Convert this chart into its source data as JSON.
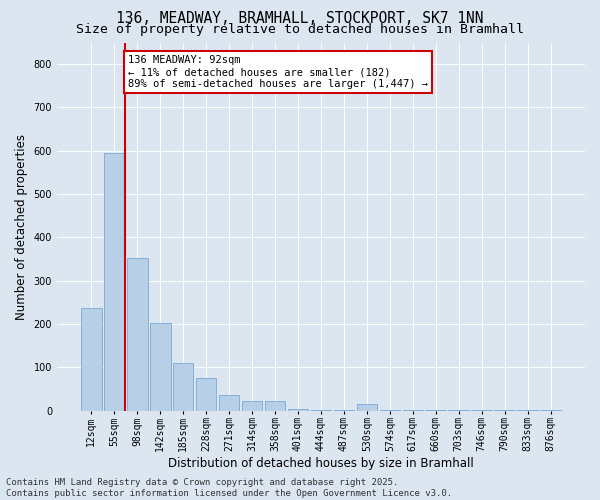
{
  "title1": "136, MEADWAY, BRAMHALL, STOCKPORT, SK7 1NN",
  "title2": "Size of property relative to detached houses in Bramhall",
  "xlabel": "Distribution of detached houses by size in Bramhall",
  "ylabel": "Number of detached properties",
  "bar_labels": [
    "12sqm",
    "55sqm",
    "98sqm",
    "142sqm",
    "185sqm",
    "228sqm",
    "271sqm",
    "314sqm",
    "358sqm",
    "401sqm",
    "444sqm",
    "487sqm",
    "530sqm",
    "574sqm",
    "617sqm",
    "660sqm",
    "703sqm",
    "746sqm",
    "790sqm",
    "833sqm",
    "876sqm"
  ],
  "bar_values": [
    238,
    595,
    352,
    202,
    110,
    75,
    35,
    22,
    22,
    3,
    2,
    2,
    15,
    1,
    1,
    1,
    1,
    1,
    1,
    1,
    1
  ],
  "bar_color": "#b8cfe8",
  "bar_edge_color": "#7aa8d4",
  "background_color": "#dce6f1",
  "plot_bg_color": "#dce6f1",
  "red_line_color": "#cc0000",
  "annotation_text": "136 MEADWAY: 92sqm\n← 11% of detached houses are smaller (182)\n89% of semi-detached houses are larger (1,447) →",
  "annotation_box_color": "#ffffff",
  "annotation_edge_color": "#cc0000",
  "ylim": [
    0,
    850
  ],
  "yticks": [
    0,
    100,
    200,
    300,
    400,
    500,
    600,
    700,
    800
  ],
  "footer_text": "Contains HM Land Registry data © Crown copyright and database right 2025.\nContains public sector information licensed under the Open Government Licence v3.0.",
  "title_fontsize": 10.5,
  "title2_fontsize": 9.5,
  "axis_label_fontsize": 8.5,
  "tick_fontsize": 7,
  "footer_fontsize": 6.5,
  "annotation_fontsize": 7.5
}
